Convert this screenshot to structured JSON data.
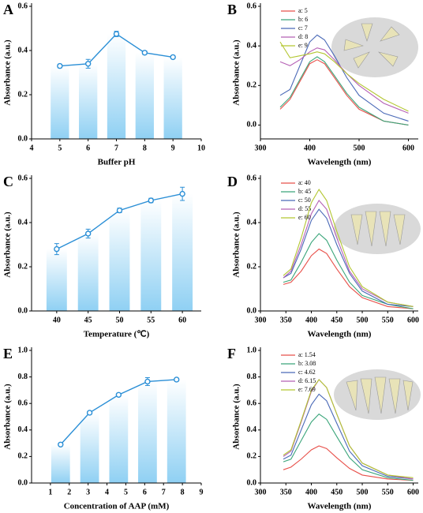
{
  "chart_data": [
    {
      "type": "bar",
      "label": "A",
      "xlabel": "Buffer pH",
      "ylabel": "Absorbance (a.u.)",
      "color": "#2b8fd6",
      "x": [
        5,
        6,
        7,
        8,
        9
      ],
      "values": [
        0.33,
        0.34,
        0.475,
        0.39,
        0.37
      ],
      "errors": [
        0.008,
        0.02,
        0.012,
        0.008,
        0.006
      ],
      "xlim": [
        4,
        10
      ],
      "xticks": [
        4,
        5,
        6,
        7,
        8,
        9,
        10
      ],
      "ylim": [
        0,
        0.6
      ],
      "yticks": [
        {
          "value": 0,
          "label": "0.0"
        },
        0.2,
        0.4,
        0.6
      ]
    },
    {
      "type": "line",
      "label": "B",
      "xlabel": "Wavelength (nm)",
      "ylabel": "Absorbance (a.u.)",
      "x": [
        340,
        360,
        380,
        400,
        415,
        430,
        450,
        475,
        500,
        550,
        600
      ],
      "series": [
        {
          "name": "a: 5",
          "color": "#e8504a",
          "values": [
            0.08,
            0.13,
            0.22,
            0.31,
            0.33,
            0.31,
            0.24,
            0.15,
            0.08,
            0.02,
            0.0
          ]
        },
        {
          "name": "b: 6",
          "color": "#3aa57a",
          "values": [
            0.09,
            0.14,
            0.23,
            0.32,
            0.345,
            0.32,
            0.25,
            0.16,
            0.09,
            0.02,
            0.0
          ]
        },
        {
          "name": "c: 7",
          "color": "#4a69b7",
          "values": [
            0.15,
            0.18,
            0.3,
            0.42,
            0.455,
            0.43,
            0.35,
            0.24,
            0.15,
            0.06,
            0.02
          ]
        },
        {
          "name": "d: 8",
          "color": "#b560b5",
          "values": [
            0.32,
            0.3,
            0.33,
            0.37,
            0.39,
            0.38,
            0.33,
            0.26,
            0.2,
            0.11,
            0.06
          ]
        },
        {
          "name": "e: 9",
          "color": "#b3c631",
          "values": [
            0.42,
            0.34,
            0.35,
            0.36,
            0.37,
            0.36,
            0.32,
            0.26,
            0.21,
            0.13,
            0.07
          ]
        }
      ],
      "xlim": [
        300,
        620
      ],
      "xticks": [
        300,
        400,
        500,
        600
      ],
      "ylim": [
        -0.07,
        0.6
      ],
      "yticks": [
        {
          "value": 0,
          "label": "0.0"
        },
        0.2,
        0.4,
        0.6
      ]
    },
    {
      "type": "bar",
      "label": "C",
      "xlabel": "Temperature (℃)",
      "ylabel": "Absorbance (a.u.)",
      "color": "#2b8fd6",
      "x": [
        40,
        45,
        50,
        55,
        60
      ],
      "values": [
        0.28,
        0.35,
        0.455,
        0.5,
        0.53
      ],
      "errors": [
        0.025,
        0.02,
        0.01,
        0.01,
        0.03
      ],
      "xlim": [
        36,
        63
      ],
      "xticks": [
        40,
        45,
        50,
        55,
        60
      ],
      "ylim": [
        0,
        0.6
      ],
      "yticks": [
        {
          "value": 0,
          "label": "0.0"
        },
        0.2,
        0.4,
        0.6
      ]
    },
    {
      "type": "line",
      "label": "D",
      "xlabel": "Wavelength (nm)",
      "ylabel": "Absorbance (a.u.)",
      "x": [
        345,
        360,
        380,
        400,
        415,
        430,
        450,
        475,
        500,
        550,
        600
      ],
      "series": [
        {
          "name": "a: 40",
          "color": "#e8504a",
          "values": [
            0.12,
            0.13,
            0.18,
            0.25,
            0.28,
            0.26,
            0.19,
            0.11,
            0.06,
            0.02,
            0.01
          ]
        },
        {
          "name": "b: 45",
          "color": "#3aa57a",
          "values": [
            0.13,
            0.14,
            0.22,
            0.31,
            0.35,
            0.32,
            0.23,
            0.13,
            0.07,
            0.03,
            0.01
          ]
        },
        {
          "name": "c: 50",
          "color": "#4a69b7",
          "values": [
            0.15,
            0.17,
            0.28,
            0.41,
            0.46,
            0.42,
            0.3,
            0.17,
            0.09,
            0.03,
            0.02
          ]
        },
        {
          "name": "d: 55",
          "color": "#b560b5",
          "values": [
            0.15,
            0.18,
            0.3,
            0.44,
            0.5,
            0.46,
            0.33,
            0.18,
            0.1,
            0.04,
            0.02
          ]
        },
        {
          "name": "e: 60",
          "color": "#b3c631",
          "values": [
            0.16,
            0.19,
            0.33,
            0.49,
            0.55,
            0.5,
            0.36,
            0.2,
            0.11,
            0.04,
            0.02
          ]
        }
      ],
      "xlim": [
        300,
        610
      ],
      "xticks": [
        300,
        350,
        400,
        450,
        500,
        550,
        600
      ],
      "ylim": [
        0,
        0.6
      ],
      "yticks": [
        {
          "value": 0,
          "label": "0.0"
        },
        0.2,
        0.4,
        0.6
      ]
    },
    {
      "type": "bar",
      "label": "E",
      "xlabel": "Concentration of AAP (mM)",
      "ylabel": "Absorbance (a.u.)",
      "color": "#2b8fd6",
      "x": [
        1.54,
        3.08,
        4.62,
        6.15,
        7.69
      ],
      "values": [
        0.29,
        0.53,
        0.665,
        0.765,
        0.78
      ],
      "errors": [
        0.01,
        0.01,
        0.01,
        0.03,
        0.01
      ],
      "xlim": [
        0,
        9
      ],
      "xticks": [
        1,
        2,
        3,
        4,
        5,
        6,
        7,
        8,
        9
      ],
      "ylim": [
        0,
        1
      ],
      "yticks": [
        {
          "value": 0,
          "label": "0.0"
        },
        0.2,
        0.4,
        0.6,
        0.8,
        {
          "value": 1,
          "label": "1.0"
        }
      ]
    },
    {
      "type": "line",
      "label": "F",
      "xlabel": "Wavelength (nm)",
      "ylabel": "Absorbance (a.u.)",
      "x": [
        345,
        360,
        380,
        400,
        415,
        430,
        450,
        475,
        500,
        550,
        600
      ],
      "series": [
        {
          "name": "a: 1.54",
          "color": "#e8504a",
          "values": [
            0.1,
            0.12,
            0.18,
            0.25,
            0.28,
            0.26,
            0.19,
            0.11,
            0.06,
            0.03,
            0.02
          ]
        },
        {
          "name": "b: 3.08",
          "color": "#3aa57a",
          "values": [
            0.16,
            0.18,
            0.32,
            0.46,
            0.52,
            0.48,
            0.35,
            0.19,
            0.1,
            0.04,
            0.02
          ]
        },
        {
          "name": "c: 4.62",
          "color": "#4a69b7",
          "values": [
            0.18,
            0.21,
            0.4,
            0.59,
            0.67,
            0.62,
            0.45,
            0.24,
            0.13,
            0.05,
            0.03
          ]
        },
        {
          "name": "d: 6.15",
          "color": "#b560b5",
          "values": [
            0.2,
            0.24,
            0.46,
            0.69,
            0.78,
            0.72,
            0.52,
            0.28,
            0.15,
            0.06,
            0.03
          ]
        },
        {
          "name": "e: 7.69",
          "color": "#b3c631",
          "values": [
            0.21,
            0.25,
            0.47,
            0.7,
            0.78,
            0.72,
            0.52,
            0.28,
            0.15,
            0.06,
            0.04
          ]
        }
      ],
      "xlim": [
        300,
        610
      ],
      "xticks": [
        300,
        350,
        400,
        450,
        500,
        550,
        600
      ],
      "ylim": [
        0,
        1
      ],
      "yticks": [
        {
          "value": 0,
          "label": "0.0"
        },
        0.2,
        0.4,
        0.6,
        0.8,
        {
          "value": 1,
          "label": "1.0"
        }
      ]
    }
  ]
}
